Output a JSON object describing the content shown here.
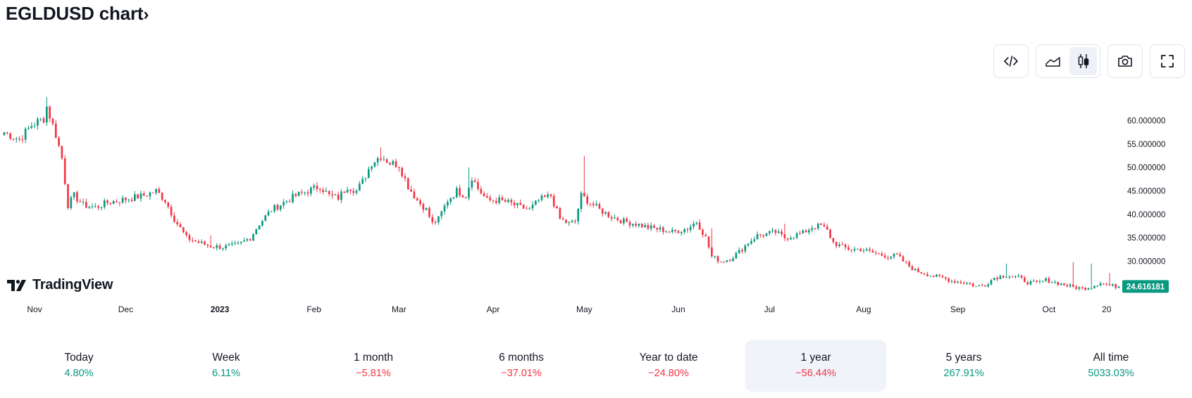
{
  "header": {
    "title": "EGLDUSD chart",
    "chevron": "›"
  },
  "toolbar": {
    "buttons": [
      {
        "name": "embed-code-icon",
        "active": false
      },
      {
        "name": "area-chart-icon",
        "active": false
      },
      {
        "name": "candles-chart-icon",
        "active": true
      },
      {
        "name": "camera-icon",
        "active": false
      },
      {
        "name": "fullscreen-icon",
        "active": false
      }
    ]
  },
  "branding": {
    "logo_text": "TradingView"
  },
  "chart_data": {
    "type": "candlestick",
    "symbol": "EGLDUSD",
    "last_price": "24.616181",
    "last_price_color": "#089981",
    "up_color": "#089981",
    "down_color": "#f23645",
    "ylim": [
      22,
      68
    ],
    "y_ticks": [
      {
        "value": 60,
        "label": "60.000000"
      },
      {
        "value": 55,
        "label": "55.000000"
      },
      {
        "value": 50,
        "label": "50.000000"
      },
      {
        "value": 45,
        "label": "45.000000"
      },
      {
        "value": 40,
        "label": "40.000000"
      },
      {
        "value": 35,
        "label": "35.000000"
      },
      {
        "value": 30,
        "label": "30.000000"
      }
    ],
    "x_ticks": [
      {
        "label": "Nov",
        "bold": false,
        "index": 10
      },
      {
        "label": "Dec",
        "bold": false,
        "index": 40
      },
      {
        "label": "2023",
        "bold": true,
        "index": 71
      },
      {
        "label": "Feb",
        "bold": false,
        "index": 102
      },
      {
        "label": "Mar",
        "bold": false,
        "index": 130
      },
      {
        "label": "Apr",
        "bold": false,
        "index": 161
      },
      {
        "label": "May",
        "bold": false,
        "index": 191
      },
      {
        "label": "Jun",
        "bold": false,
        "index": 222
      },
      {
        "label": "Jul",
        "bold": false,
        "index": 252
      },
      {
        "label": "Aug",
        "bold": false,
        "index": 283
      },
      {
        "label": "Sep",
        "bold": false,
        "index": 314
      },
      {
        "label": "Oct",
        "bold": false,
        "index": 344
      },
      {
        "label": "20",
        "bold": false,
        "index": 363
      }
    ],
    "close_keypoints": [
      [
        0,
        57.5
      ],
      [
        5,
        56
      ],
      [
        9,
        59
      ],
      [
        13,
        60.5
      ],
      [
        14,
        63
      ],
      [
        17,
        57
      ],
      [
        19,
        52
      ],
      [
        21,
        42
      ],
      [
        23,
        44
      ],
      [
        26,
        42
      ],
      [
        30,
        41.5
      ],
      [
        34,
        42.5
      ],
      [
        38,
        43
      ],
      [
        42,
        43.5
      ],
      [
        46,
        44
      ],
      [
        50,
        45
      ],
      [
        53,
        43
      ],
      [
        56,
        39
      ],
      [
        58,
        37
      ],
      [
        60,
        35
      ],
      [
        64,
        34
      ],
      [
        68,
        33.2
      ],
      [
        72,
        33
      ],
      [
        77,
        33.5
      ],
      [
        81,
        35
      ],
      [
        84,
        38
      ],
      [
        88,
        41
      ],
      [
        92,
        42.5
      ],
      [
        96,
        44
      ],
      [
        100,
        45
      ],
      [
        104,
        46
      ],
      [
        107,
        44
      ],
      [
        110,
        43.5
      ],
      [
        113,
        46
      ],
      [
        116,
        45
      ],
      [
        118,
        47
      ],
      [
        121,
        51
      ],
      [
        124,
        52.5
      ],
      [
        127,
        51
      ],
      [
        130,
        50.5
      ],
      [
        133,
        46
      ],
      [
        136,
        43
      ],
      [
        139,
        41
      ],
      [
        141,
        38
      ],
      [
        143,
        39
      ],
      [
        146,
        43
      ],
      [
        149,
        45
      ],
      [
        152,
        44
      ],
      [
        154,
        48
      ],
      [
        156,
        45.5
      ],
      [
        159,
        43
      ],
      [
        163,
        43
      ],
      [
        166,
        42.5
      ],
      [
        170,
        41.5
      ],
      [
        173,
        41
      ],
      [
        176,
        43
      ],
      [
        180,
        44
      ],
      [
        183,
        39
      ],
      [
        186,
        38
      ],
      [
        188,
        38.5
      ],
      [
        190,
        44
      ],
      [
        193,
        42.5
      ],
      [
        196,
        41
      ],
      [
        200,
        39.5
      ],
      [
        204,
        38.5
      ],
      [
        208,
        38
      ],
      [
        212,
        37.2
      ],
      [
        216,
        36.8
      ],
      [
        220,
        36.2
      ],
      [
        225,
        37
      ],
      [
        228,
        38.5
      ],
      [
        231,
        35
      ],
      [
        233,
        31
      ],
      [
        236,
        30
      ],
      [
        239,
        30.5
      ],
      [
        242,
        32
      ],
      [
        245,
        34
      ],
      [
        248,
        35.5
      ],
      [
        251,
        35.8
      ],
      [
        254,
        36.2
      ],
      [
        257,
        35
      ],
      [
        260,
        35.5
      ],
      [
        263,
        36
      ],
      [
        266,
        37.3
      ],
      [
        269,
        37.6
      ],
      [
        271,
        36.5
      ],
      [
        273,
        34
      ],
      [
        276,
        33
      ],
      [
        279,
        32.5
      ],
      [
        282,
        32.6
      ],
      [
        285,
        32
      ],
      [
        288,
        31.5
      ],
      [
        291,
        31
      ],
      [
        294,
        31.2
      ],
      [
        296,
        30
      ],
      [
        298,
        29
      ],
      [
        300,
        28
      ],
      [
        303,
        27.5
      ],
      [
        306,
        26.8
      ],
      [
        309,
        26.5
      ],
      [
        312,
        25.8
      ],
      [
        315,
        25.5
      ],
      [
        318,
        25.2
      ],
      [
        320,
        24.6
      ],
      [
        323,
        25
      ],
      [
        326,
        26.5
      ],
      [
        330,
        27
      ],
      [
        334,
        26.5
      ],
      [
        337,
        25.5
      ],
      [
        340,
        25.3
      ],
      [
        343,
        26
      ],
      [
        346,
        25.5
      ],
      [
        349,
        25
      ],
      [
        352,
        24.5
      ],
      [
        355,
        24.2
      ],
      [
        358,
        24.6
      ],
      [
        361,
        25.5
      ],
      [
        364,
        24.8
      ],
      [
        367,
        24.62
      ]
    ],
    "spikes": [
      [
        14,
        65
      ],
      [
        68,
        35.5
      ],
      [
        124,
        54.3
      ],
      [
        153,
        50
      ],
      [
        191,
        52.5
      ],
      [
        233,
        37
      ],
      [
        257,
        38
      ],
      [
        330,
        29.5
      ],
      [
        352,
        29.8
      ],
      [
        358,
        29.5
      ],
      [
        364,
        27.5
      ]
    ],
    "candle_count": 368
  },
  "periods": [
    {
      "label": "Today",
      "value": "4.80%",
      "direction": "up",
      "selected": false
    },
    {
      "label": "Week",
      "value": "6.11%",
      "direction": "up",
      "selected": false
    },
    {
      "label": "1 month",
      "value": "−5.81%",
      "direction": "down",
      "selected": false
    },
    {
      "label": "6 months",
      "value": "−37.01%",
      "direction": "down",
      "selected": false
    },
    {
      "label": "Year to date",
      "value": "−24.80%",
      "direction": "down",
      "selected": false
    },
    {
      "label": "1 year",
      "value": "−56.44%",
      "direction": "down",
      "selected": true
    },
    {
      "label": "5 years",
      "value": "267.91%",
      "direction": "up",
      "selected": false
    },
    {
      "label": "All time",
      "value": "5033.03%",
      "direction": "up",
      "selected": false
    }
  ]
}
